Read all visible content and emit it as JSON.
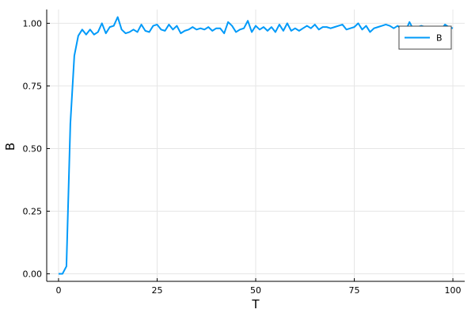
{
  "chart_data": {
    "type": "line",
    "title": "",
    "xlabel": "T",
    "ylabel": "B",
    "xlim": [
      -3,
      103
    ],
    "ylim": [
      -0.03,
      1.055
    ],
    "xticks": [
      0,
      25,
      50,
      75,
      100
    ],
    "yticks": [
      0.0,
      0.25,
      0.5,
      0.75,
      1.0
    ],
    "xtick_labels": [
      "0",
      "25",
      "50",
      "75",
      "100"
    ],
    "ytick_labels": [
      "0.00",
      "0.25",
      "0.50",
      "0.75",
      "1.00"
    ],
    "grid": true,
    "legend_position": "top-right",
    "series": [
      {
        "name": "B",
        "color": "#009af9",
        "x": [
          0,
          1,
          2,
          3,
          4,
          5,
          6,
          7,
          8,
          9,
          10,
          11,
          12,
          13,
          14,
          15,
          16,
          17,
          18,
          19,
          20,
          21,
          22,
          23,
          24,
          25,
          26,
          27,
          28,
          29,
          30,
          31,
          32,
          33,
          34,
          35,
          36,
          37,
          38,
          39,
          40,
          41,
          42,
          43,
          44,
          45,
          46,
          47,
          48,
          49,
          50,
          51,
          52,
          53,
          54,
          55,
          56,
          57,
          58,
          59,
          60,
          61,
          62,
          63,
          64,
          65,
          66,
          67,
          68,
          69,
          70,
          71,
          72,
          73,
          74,
          75,
          76,
          77,
          78,
          79,
          80,
          81,
          82,
          83,
          84,
          85,
          86,
          87,
          88,
          89,
          90,
          91,
          92,
          93,
          94,
          95,
          96,
          97,
          98,
          99,
          100
        ],
        "values": [
          0.0,
          0.0,
          0.03,
          0.6,
          0.87,
          0.95,
          0.975,
          0.955,
          0.975,
          0.955,
          0.965,
          1.0,
          0.96,
          0.985,
          0.99,
          1.025,
          0.975,
          0.96,
          0.965,
          0.975,
          0.965,
          0.995,
          0.97,
          0.965,
          0.99,
          0.995,
          0.975,
          0.97,
          0.995,
          0.975,
          0.99,
          0.96,
          0.97,
          0.975,
          0.985,
          0.975,
          0.98,
          0.975,
          0.985,
          0.97,
          0.98,
          0.98,
          0.96,
          1.005,
          0.99,
          0.965,
          0.975,
          0.98,
          1.01,
          0.965,
          0.99,
          0.975,
          0.985,
          0.97,
          0.985,
          0.965,
          0.995,
          0.97,
          1.0,
          0.97,
          0.98,
          0.97,
          0.98,
          0.99,
          0.98,
          0.995,
          0.975,
          0.985,
          0.985,
          0.98,
          0.985,
          0.99,
          0.995,
          0.975,
          0.98,
          0.985,
          1.0,
          0.975,
          0.99,
          0.965,
          0.98,
          0.985,
          0.99,
          0.995,
          0.99,
          0.98,
          0.99,
          0.975,
          0.97,
          1.005,
          0.975,
          0.985,
          0.99,
          0.985,
          0.98,
          0.985,
          0.985,
          0.975,
          0.995,
          0.985,
          0.98
        ]
      }
    ]
  }
}
